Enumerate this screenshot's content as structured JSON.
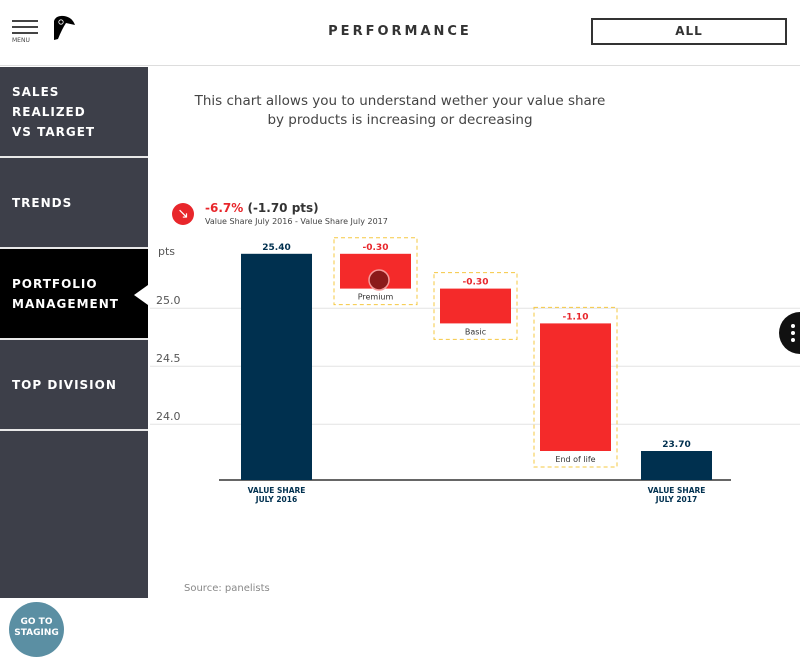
{
  "header": {
    "menu_label": "MENU",
    "title": "PERFORMANCE",
    "filter_value": "ALL"
  },
  "sidebar": {
    "items": [
      {
        "label": "SALES REALIZED VS TARGET",
        "lines": [
          "SALES REALIZED",
          "VS TARGET"
        ],
        "active": false
      },
      {
        "label": "TRENDS",
        "lines": [
          "TRENDS"
        ],
        "active": false
      },
      {
        "label": "PORTFOLIO MANAGEMENT",
        "lines": [
          "PORTFOLIO",
          "MANAGEMENT"
        ],
        "active": true
      },
      {
        "label": "TOP DIVISION",
        "lines": [
          "TOP DIVISION"
        ],
        "active": false
      }
    ],
    "staging_lines": [
      "GO TO",
      "STAGING"
    ]
  },
  "main": {
    "description_lines": [
      "This chart allows you to understand wether your value share",
      "by products is increasing or decreasing"
    ],
    "summary": {
      "pct": "-6.7%",
      "pts": "(-1.70 pts)",
      "subtitle": "Value Share July 2016 - Value Share July 2017",
      "icon": "arrow-down-right-icon"
    },
    "source": "Source: panelists"
  },
  "chart_data": {
    "type": "waterfall",
    "ylabel": "pts",
    "yticks": [
      25.0,
      24.5,
      24.0
    ],
    "ytick_labels": [
      "25.0",
      "24.5",
      "24.0"
    ],
    "grid": true,
    "steps": [
      {
        "label_lines": [
          "VALUE SHARE",
          "JULY 2016"
        ],
        "value": 25.4,
        "value_label": "25.40",
        "kind": "total"
      },
      {
        "label_lines": [
          "Premium"
        ],
        "value": -0.3,
        "value_label": "-0.30",
        "kind": "delta"
      },
      {
        "label_lines": [
          "Basic"
        ],
        "value": -0.3,
        "value_label": "-0.30",
        "kind": "delta"
      },
      {
        "label_lines": [
          "End of life"
        ],
        "value": -1.1,
        "value_label": "-1.10",
        "kind": "delta"
      },
      {
        "label_lines": [
          "VALUE SHARE",
          "JULY 2017"
        ],
        "value": 23.7,
        "value_label": "23.70",
        "kind": "total"
      }
    ],
    "colors": {
      "total": "#00304f",
      "delta": "#f42a2a",
      "negative_text": "#e8262b",
      "box_border": "#f5c842"
    }
  }
}
